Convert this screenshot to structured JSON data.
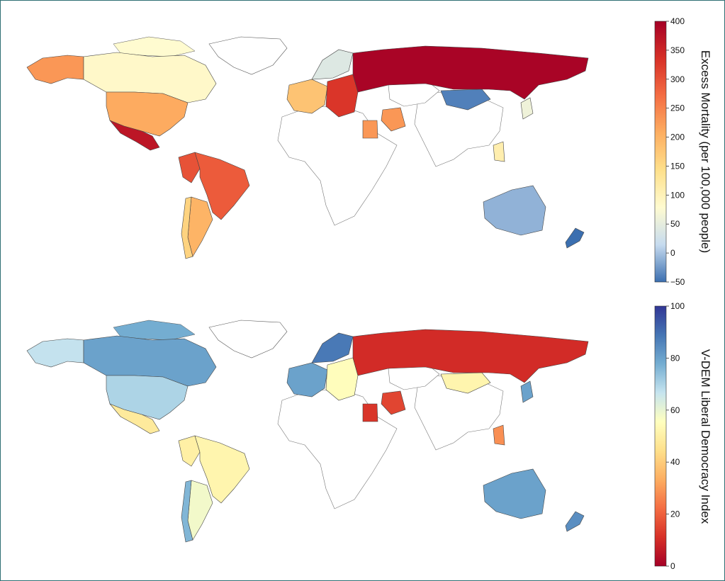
{
  "panels": [
    {
      "id": "excess-mortality",
      "colorbar": {
        "title": "Excess Mortality (per 100,000 people)",
        "ticks": [
          "400",
          "350",
          "300",
          "250",
          "200",
          "150",
          "100",
          "50",
          "0",
          "−50"
        ],
        "range": [
          -50,
          400
        ],
        "colors": [
          "#3b6fb0",
          "#c6dbef",
          "#fffbd0",
          "#fee08b",
          "#fdae61",
          "#f46d43",
          "#d73027",
          "#a50026"
        ]
      },
      "regions": [
        {
          "name": "Alaska",
          "value": 230
        },
        {
          "name": "Canada",
          "value": 85
        },
        {
          "name": "United States",
          "value": 210
        },
        {
          "name": "Mexico",
          "value": 370
        },
        {
          "name": "Brazil",
          "value": 290
        },
        {
          "name": "Peru",
          "value": 300
        },
        {
          "name": "Argentina",
          "value": 200
        },
        {
          "name": "Chile",
          "value": 160
        },
        {
          "name": "Russia",
          "value": 395
        },
        {
          "name": "Mongolia",
          "value": -40
        },
        {
          "name": "Australia",
          "value": -10
        },
        {
          "name": "New Zealand",
          "value": -50
        },
        {
          "name": "Western Europe",
          "value": 180
        },
        {
          "name": "Eastern Europe",
          "value": 330
        },
        {
          "name": "Scandinavia",
          "value": 40
        },
        {
          "name": "Egypt",
          "value": 230
        },
        {
          "name": "Iran",
          "value": 230
        },
        {
          "name": "Japan",
          "value": 60
        },
        {
          "name": "Philippines",
          "value": 110
        }
      ]
    },
    {
      "id": "liberal-democracy",
      "colorbar": {
        "title": "V-DEM Liberal Democracy Index",
        "ticks": [
          "100",
          "80",
          "60",
          "40",
          "20",
          "0"
        ],
        "range": [
          0,
          100
        ],
        "colors": [
          "#a50026",
          "#d73027",
          "#f46d43",
          "#fdae61",
          "#fee08b",
          "#ffffbf",
          "#c6e4ef",
          "#74add1",
          "#4575b4",
          "#313695"
        ]
      },
      "regions": [
        {
          "name": "Alaska",
          "value": 67
        },
        {
          "name": "Canada",
          "value": 80
        },
        {
          "name": "United States",
          "value": 70
        },
        {
          "name": "Mexico",
          "value": 48
        },
        {
          "name": "Brazil",
          "value": 52
        },
        {
          "name": "Peru",
          "value": 50
        },
        {
          "name": "Argentina",
          "value": 58
        },
        {
          "name": "Chile",
          "value": 76
        },
        {
          "name": "Russia",
          "value": 10
        },
        {
          "name": "Mongolia",
          "value": 52
        },
        {
          "name": "Australia",
          "value": 80
        },
        {
          "name": "New Zealand",
          "value": 84
        },
        {
          "name": "Western Europe",
          "value": 80
        },
        {
          "name": "Eastern Europe",
          "value": 55
        },
        {
          "name": "Scandinavia",
          "value": 88
        },
        {
          "name": "Egypt",
          "value": 12
        },
        {
          "name": "Iran",
          "value": 15
        },
        {
          "name": "Japan",
          "value": 80
        },
        {
          "name": "Philippines",
          "value": 28
        }
      ]
    }
  ]
}
